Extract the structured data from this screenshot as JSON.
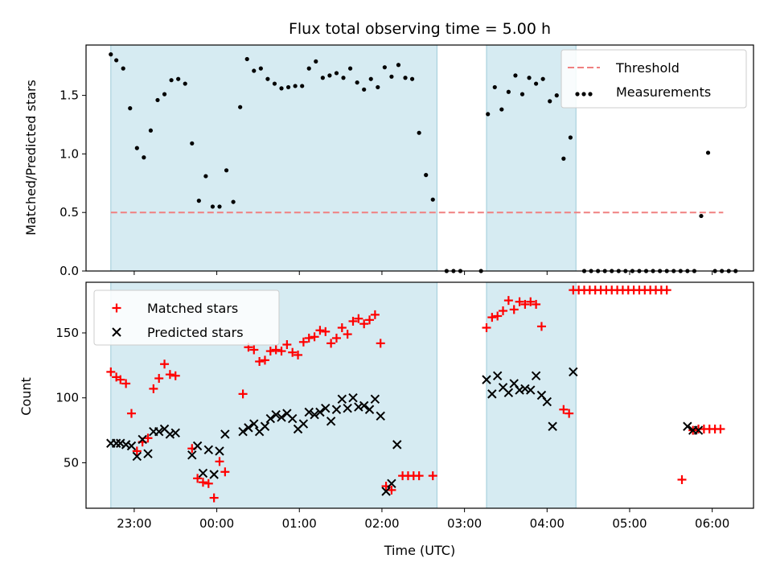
{
  "chart_data": [
    {
      "type": "scatter",
      "title": "Flux total observing time = 5.00 h",
      "xlabel": "",
      "ylabel": "Matched/Predicted stars",
      "ylim": [
        0,
        1.93
      ],
      "yticks": [
        "0.0",
        "0.5",
        "1.0",
        "1.5"
      ],
      "xlim": [
        "22:25",
        "06:30"
      ],
      "x_tick_labels_visible": false,
      "legend_location": "upper right",
      "shaded_intervals": [
        [
          "22:43",
          "02:40"
        ],
        [
          "03:16",
          "04:21"
        ]
      ],
      "reference_lines": [
        {
          "name": "Threshold",
          "y": 0.5,
          "x_range": [
            "22:43",
            "06:08"
          ],
          "style": "dashed",
          "color": "#f08080"
        }
      ],
      "series": [
        {
          "name": "Measurements",
          "marker": "dot",
          "color": "#000000",
          "points": [
            [
              "22:43",
              1.85
            ],
            [
              "22:47",
              1.8
            ],
            [
              "22:52",
              1.73
            ],
            [
              "22:57",
              1.39
            ],
            [
              "23:02",
              1.05
            ],
            [
              "23:07",
              0.97
            ],
            [
              "23:12",
              1.2
            ],
            [
              "23:17",
              1.46
            ],
            [
              "23:22",
              1.51
            ],
            [
              "23:27",
              1.63
            ],
            [
              "23:32",
              1.64
            ],
            [
              "23:37",
              1.6
            ],
            [
              "23:42",
              1.09
            ],
            [
              "23:47",
              0.6
            ],
            [
              "23:52",
              0.81
            ],
            [
              "23:57",
              0.55
            ],
            [
              "00:02",
              0.55
            ],
            [
              "00:07",
              0.86
            ],
            [
              "00:12",
              0.59
            ],
            [
              "00:17",
              1.4
            ],
            [
              "00:22",
              1.81
            ],
            [
              "00:27",
              1.71
            ],
            [
              "00:32",
              1.73
            ],
            [
              "00:37",
              1.64
            ],
            [
              "00:42",
              1.6
            ],
            [
              "00:47",
              1.56
            ],
            [
              "00:52",
              1.57
            ],
            [
              "00:57",
              1.58
            ],
            [
              "01:02",
              1.58
            ],
            [
              "01:07",
              1.73
            ],
            [
              "01:12",
              1.79
            ],
            [
              "01:17",
              1.65
            ],
            [
              "01:22",
              1.67
            ],
            [
              "01:27",
              1.69
            ],
            [
              "01:32",
              1.65
            ],
            [
              "01:37",
              1.73
            ],
            [
              "01:42",
              1.61
            ],
            [
              "01:47",
              1.55
            ],
            [
              "01:52",
              1.64
            ],
            [
              "01:57",
              1.57
            ],
            [
              "02:02",
              1.74
            ],
            [
              "02:07",
              1.66
            ],
            [
              "02:12",
              1.76
            ],
            [
              "02:17",
              1.65
            ],
            [
              "02:22",
              1.64
            ],
            [
              "02:27",
              1.18
            ],
            [
              "02:32",
              0.82
            ],
            [
              "02:37",
              0.61
            ],
            [
              "02:47",
              0.0
            ],
            [
              "02:52",
              0.0
            ],
            [
              "02:57",
              0.0
            ],
            [
              "03:12",
              0.0
            ],
            [
              "03:17",
              1.34
            ],
            [
              "03:22",
              1.57
            ],
            [
              "03:27",
              1.38
            ],
            [
              "03:32",
              1.53
            ],
            [
              "03:37",
              1.67
            ],
            [
              "03:42",
              1.51
            ],
            [
              "03:47",
              1.65
            ],
            [
              "03:52",
              1.6
            ],
            [
              "03:57",
              1.64
            ],
            [
              "04:02",
              1.45
            ],
            [
              "04:07",
              1.5
            ],
            [
              "04:12",
              0.96
            ],
            [
              "04:17",
              1.14
            ],
            [
              "04:27",
              0.0
            ],
            [
              "04:32",
              0.0
            ],
            [
              "04:37",
              0.0
            ],
            [
              "04:42",
              0.0
            ],
            [
              "04:47",
              0.0
            ],
            [
              "04:52",
              0.0
            ],
            [
              "04:57",
              0.0
            ],
            [
              "05:02",
              0.0
            ],
            [
              "05:07",
              0.0
            ],
            [
              "05:12",
              0.0
            ],
            [
              "05:17",
              0.0
            ],
            [
              "05:22",
              0.0
            ],
            [
              "05:27",
              0.0
            ],
            [
              "05:32",
              0.0
            ],
            [
              "05:37",
              0.0
            ],
            [
              "05:42",
              0.0
            ],
            [
              "05:47",
              0.0
            ],
            [
              "05:52",
              0.47
            ],
            [
              "05:57",
              1.01
            ],
            [
              "06:02",
              0.0
            ],
            [
              "06:07",
              0.0
            ],
            [
              "06:12",
              0.0
            ],
            [
              "06:17",
              0.0
            ]
          ]
        }
      ]
    },
    {
      "type": "scatter",
      "title": "",
      "xlabel": "Time (UTC)",
      "ylabel": "Count",
      "ylim": [
        15,
        189
      ],
      "yticks": [
        "50",
        "100",
        "150"
      ],
      "xlim": [
        "22:25",
        "06:30"
      ],
      "xticks": [
        "23:00",
        "00:00",
        "01:00",
        "02:00",
        "03:00",
        "04:00",
        "05:00",
        "06:00"
      ],
      "legend_location": "upper left",
      "shaded_intervals": [
        [
          "22:43",
          "02:40"
        ],
        [
          "03:16",
          "04:21"
        ]
      ],
      "series": [
        {
          "name": "Matched stars",
          "marker": "plus",
          "color": "#ff0000",
          "points": [
            [
              "22:43",
              120
            ],
            [
              "22:47",
              116
            ],
            [
              "22:50",
              114
            ],
            [
              "22:54",
              111
            ],
            [
              "22:58",
              88
            ],
            [
              "23:02",
              59
            ],
            [
              "23:06",
              66
            ],
            [
              "23:10",
              69
            ],
            [
              "23:14",
              107
            ],
            [
              "23:18",
              115
            ],
            [
              "23:22",
              126
            ],
            [
              "23:26",
              118
            ],
            [
              "23:30",
              117
            ],
            [
              "23:42",
              61
            ],
            [
              "23:46",
              38
            ],
            [
              "23:50",
              35
            ],
            [
              "23:54",
              34
            ],
            [
              "23:58",
              23
            ],
            [
              "00:02",
              51
            ],
            [
              "00:06",
              43
            ],
            [
              "00:19",
              103
            ],
            [
              "00:23",
              139
            ],
            [
              "00:27",
              137
            ],
            [
              "00:31",
              128
            ],
            [
              "00:35",
              129
            ],
            [
              "00:39",
              136
            ],
            [
              "00:43",
              137
            ],
            [
              "00:47",
              136
            ],
            [
              "00:51",
              141
            ],
            [
              "00:55",
              135
            ],
            [
              "00:59",
              133
            ],
            [
              "01:03",
              143
            ],
            [
              "01:07",
              146
            ],
            [
              "01:11",
              147
            ],
            [
              "01:15",
              152
            ],
            [
              "01:19",
              151
            ],
            [
              "01:23",
              142
            ],
            [
              "01:27",
              146
            ],
            [
              "01:31",
              154
            ],
            [
              "01:35",
              149
            ],
            [
              "01:39",
              159
            ],
            [
              "01:43",
              161
            ],
            [
              "01:47",
              157
            ],
            [
              "01:51",
              160
            ],
            [
              "01:55",
              164
            ],
            [
              "01:59",
              142
            ],
            [
              "02:03",
              32
            ],
            [
              "02:07",
              29
            ],
            [
              "02:15",
              40
            ],
            [
              "02:19",
              40
            ],
            [
              "02:23",
              40
            ],
            [
              "02:27",
              40
            ],
            [
              "02:37",
              40
            ],
            [
              "03:16",
              154
            ],
            [
              "03:20",
              162
            ],
            [
              "03:24",
              163
            ],
            [
              "03:28",
              167
            ],
            [
              "03:32",
              175
            ],
            [
              "03:36",
              168
            ],
            [
              "03:40",
              174
            ],
            [
              "03:44",
              172
            ],
            [
              "03:48",
              174
            ],
            [
              "03:52",
              172
            ],
            [
              "03:56",
              155
            ],
            [
              "04:12",
              91
            ],
            [
              "04:16",
              88
            ],
            [
              "04:19",
              183
            ],
            [
              "04:23",
              183
            ],
            [
              "04:27",
              183
            ],
            [
              "04:31",
              183
            ],
            [
              "04:35",
              183
            ],
            [
              "04:39",
              183
            ],
            [
              "04:43",
              183
            ],
            [
              "04:47",
              183
            ],
            [
              "04:51",
              183
            ],
            [
              "04:55",
              183
            ],
            [
              "04:59",
              183
            ],
            [
              "05:03",
              183
            ],
            [
              "05:07",
              183
            ],
            [
              "05:11",
              183
            ],
            [
              "05:15",
              183
            ],
            [
              "05:19",
              183
            ],
            [
              "05:23",
              183
            ],
            [
              "05:27",
              183
            ],
            [
              "05:38",
              37
            ],
            [
              "05:46",
              75
            ],
            [
              "05:50",
              76
            ],
            [
              "05:54",
              76
            ],
            [
              "05:58",
              76
            ],
            [
              "06:02",
              76
            ],
            [
              "06:06",
              76
            ]
          ]
        },
        {
          "name": "Predicted stars",
          "marker": "x",
          "color": "#000000",
          "points": [
            [
              "22:43",
              65
            ],
            [
              "22:47",
              65
            ],
            [
              "22:50",
              65
            ],
            [
              "22:54",
              64
            ],
            [
              "22:58",
              63
            ],
            [
              "23:02",
              55
            ],
            [
              "23:06",
              68
            ],
            [
              "23:10",
              57
            ],
            [
              "23:14",
              74
            ],
            [
              "23:18",
              74
            ],
            [
              "23:22",
              76
            ],
            [
              "23:26",
              72
            ],
            [
              "23:30",
              73
            ],
            [
              "23:42",
              56
            ],
            [
              "23:46",
              63
            ],
            [
              "23:50",
              42
            ],
            [
              "23:54",
              60
            ],
            [
              "23:58",
              41
            ],
            [
              "00:02",
              59
            ],
            [
              "00:06",
              72
            ],
            [
              "00:19",
              74
            ],
            [
              "00:23",
              77
            ],
            [
              "00:27",
              80
            ],
            [
              "00:31",
              74
            ],
            [
              "00:35",
              78
            ],
            [
              "00:39",
              84
            ],
            [
              "00:43",
              87
            ],
            [
              "00:47",
              85
            ],
            [
              "00:51",
              88
            ],
            [
              "00:55",
              84
            ],
            [
              "00:59",
              76
            ],
            [
              "01:03",
              80
            ],
            [
              "01:07",
              89
            ],
            [
              "01:11",
              87
            ],
            [
              "01:15",
              89
            ],
            [
              "01:19",
              92
            ],
            [
              "01:23",
              82
            ],
            [
              "01:27",
              91
            ],
            [
              "01:31",
              99
            ],
            [
              "01:35",
              92
            ],
            [
              "01:39",
              100
            ],
            [
              "01:43",
              93
            ],
            [
              "01:47",
              94
            ],
            [
              "01:51",
              91
            ],
            [
              "01:55",
              99
            ],
            [
              "01:59",
              86
            ],
            [
              "02:03",
              28
            ],
            [
              "02:07",
              34
            ],
            [
              "02:11",
              64
            ],
            [
              "03:16",
              114
            ],
            [
              "03:20",
              103
            ],
            [
              "03:24",
              117
            ],
            [
              "03:28",
              108
            ],
            [
              "03:32",
              104
            ],
            [
              "03:36",
              111
            ],
            [
              "03:40",
              106
            ],
            [
              "03:44",
              107
            ],
            [
              "03:48",
              106
            ],
            [
              "03:52",
              117
            ],
            [
              "03:56",
              102
            ],
            [
              "04:00",
              97
            ],
            [
              "04:04",
              78
            ],
            [
              "04:19",
              120
            ],
            [
              "05:42",
              78
            ],
            [
              "05:46",
              75
            ],
            [
              "05:50",
              75
            ]
          ]
        }
      ]
    }
  ]
}
